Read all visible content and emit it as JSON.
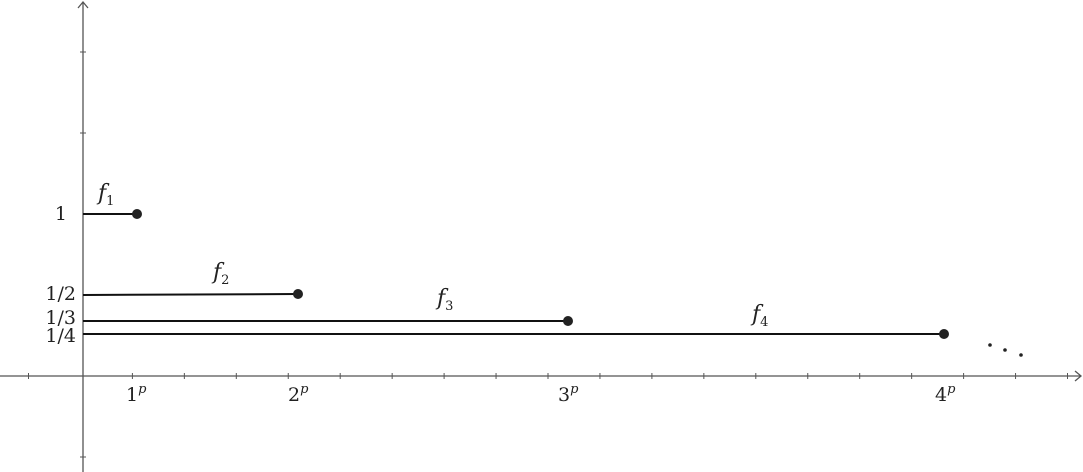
{
  "y_labels": {
    "one": "1",
    "half": "1/2",
    "third": "1/3",
    "quarter": "1/4"
  },
  "x_labels": [
    {
      "base": "1",
      "exp": "p"
    },
    {
      "base": "2",
      "exp": "p"
    },
    {
      "base": "3",
      "exp": "p"
    },
    {
      "base": "4",
      "exp": "p"
    }
  ],
  "functions": [
    {
      "name": "f",
      "index": "1",
      "height": "1",
      "end": "1^p"
    },
    {
      "name": "f",
      "index": "2",
      "height": "1/2",
      "end": "2^p"
    },
    {
      "name": "f",
      "index": "3",
      "height": "1/3",
      "end": "3^p"
    },
    {
      "name": "f",
      "index": "4",
      "height": "1/4",
      "end": "4^p"
    }
  ],
  "continuation": "ellipsis",
  "colors": {
    "axis": "#555555",
    "line": "#111111",
    "point": "#222222"
  }
}
